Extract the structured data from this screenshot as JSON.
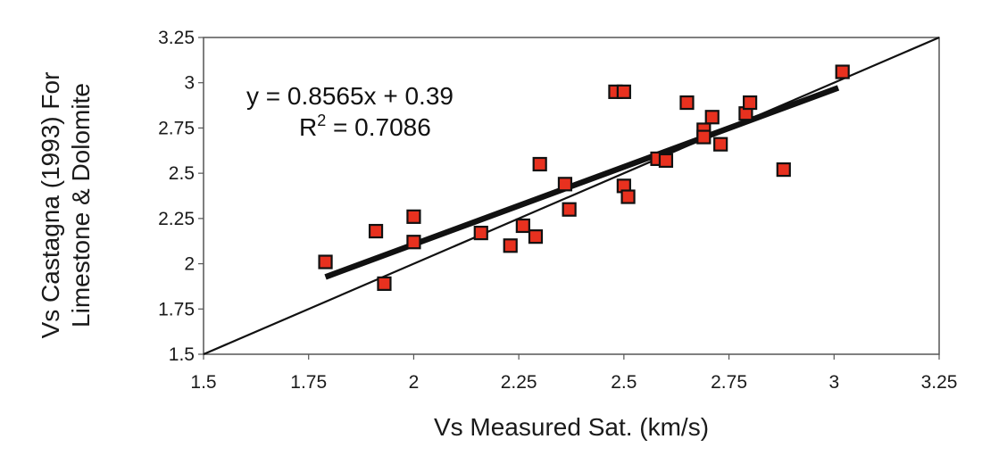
{
  "chart_data": {
    "type": "scatter",
    "xlabel": "Vs Measured Sat. (km/s)",
    "ylabel_line1": "Vs Castagna (1993) For",
    "ylabel_line2": "Limestone & Dolomite",
    "xlim": [
      1.5,
      3.25
    ],
    "ylim": [
      1.5,
      3.25
    ],
    "x_ticks": [
      "1.5",
      "1.75",
      "2",
      "2.25",
      "2.5",
      "2.75",
      "3",
      "3.25"
    ],
    "y_ticks": [
      "1.5",
      "1.75",
      "2",
      "2.25",
      "2.5",
      "2.75",
      "3",
      "3.25"
    ],
    "grid": false,
    "marker_color": "#e8311f",
    "points": [
      {
        "x": 1.79,
        "y": 2.01
      },
      {
        "x": 1.91,
        "y": 2.18
      },
      {
        "x": 1.93,
        "y": 1.89
      },
      {
        "x": 2.0,
        "y": 2.12
      },
      {
        "x": 2.0,
        "y": 2.26
      },
      {
        "x": 2.16,
        "y": 2.17
      },
      {
        "x": 2.23,
        "y": 2.1
      },
      {
        "x": 2.26,
        "y": 2.21
      },
      {
        "x": 2.29,
        "y": 2.15
      },
      {
        "x": 2.3,
        "y": 2.55
      },
      {
        "x": 2.36,
        "y": 2.44
      },
      {
        "x": 2.37,
        "y": 2.3
      },
      {
        "x": 2.48,
        "y": 2.95
      },
      {
        "x": 2.5,
        "y": 2.95
      },
      {
        "x": 2.5,
        "y": 2.43
      },
      {
        "x": 2.51,
        "y": 2.37
      },
      {
        "x": 2.58,
        "y": 2.58
      },
      {
        "x": 2.6,
        "y": 2.57
      },
      {
        "x": 2.65,
        "y": 2.89
      },
      {
        "x": 2.69,
        "y": 2.74
      },
      {
        "x": 2.69,
        "y": 2.7
      },
      {
        "x": 2.71,
        "y": 2.81
      },
      {
        "x": 2.73,
        "y": 2.66
      },
      {
        "x": 2.79,
        "y": 2.83
      },
      {
        "x": 2.8,
        "y": 2.89
      },
      {
        "x": 2.88,
        "y": 2.52
      },
      {
        "x": 3.02,
        "y": 3.06
      }
    ],
    "lines": [
      {
        "type": "identity",
        "x": [
          1.5,
          3.25
        ],
        "y": [
          1.5,
          3.25
        ]
      },
      {
        "type": "regression",
        "slope": 0.8565,
        "intercept": 0.3938,
        "x": [
          1.79,
          3.01
        ]
      }
    ],
    "equation_text": "y = 0.8565x + 0.39",
    "r2_label": "R",
    "r2_exponent": "2",
    "r2_value": " = 0.7086"
  }
}
